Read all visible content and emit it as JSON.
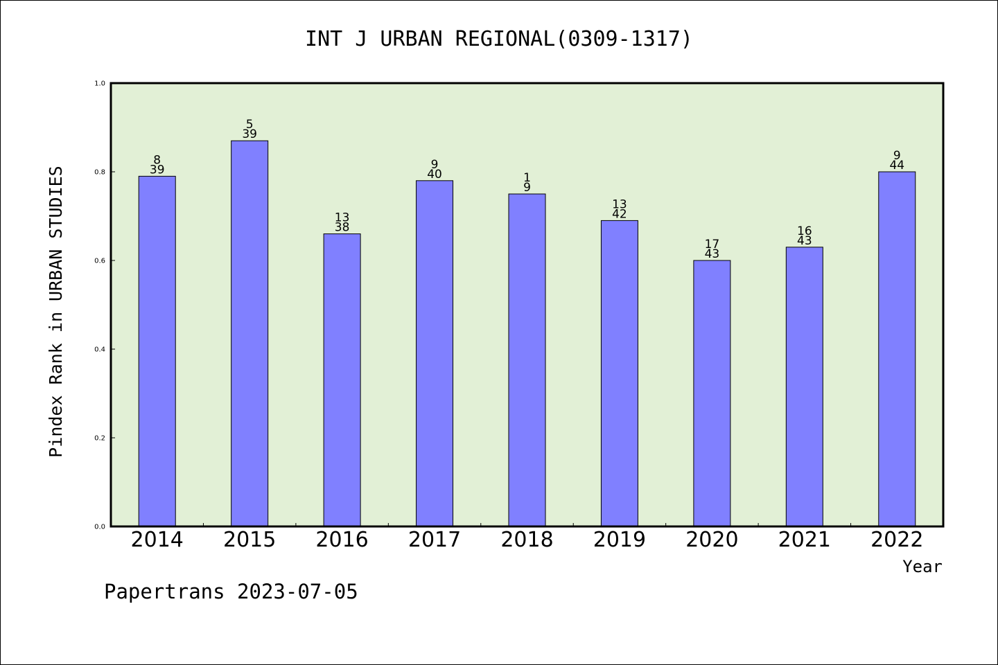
{
  "chart_data": {
    "type": "bar",
    "title": "INT J URBAN REGIONAL(0309-1317)",
    "xlabel": "Year",
    "ylabel": "Pindex Rank in URBAN STUDIES",
    "categories": [
      "2014",
      "2015",
      "2016",
      "2017",
      "2018",
      "2019",
      "2020",
      "2021",
      "2022"
    ],
    "values": [
      0.79,
      0.87,
      0.66,
      0.78,
      0.75,
      0.69,
      0.6,
      0.63,
      0.8
    ],
    "rank": [
      "8",
      "5",
      "13",
      "9",
      "1",
      "13",
      "17",
      "16",
      "9"
    ],
    "total": [
      "39",
      "39",
      "38",
      "40",
      "9",
      "42",
      "43",
      "43",
      "44"
    ],
    "ylim": [
      0,
      1.0
    ],
    "yticks": [
      "0.0",
      "0.2",
      "0.4",
      "0.6",
      "0.8",
      "1.0"
    ],
    "grid": false,
    "colors": {
      "bar": "#8080ff",
      "plot_background": "#e2f0d6"
    }
  },
  "footer": "Papertrans 2023-07-05"
}
